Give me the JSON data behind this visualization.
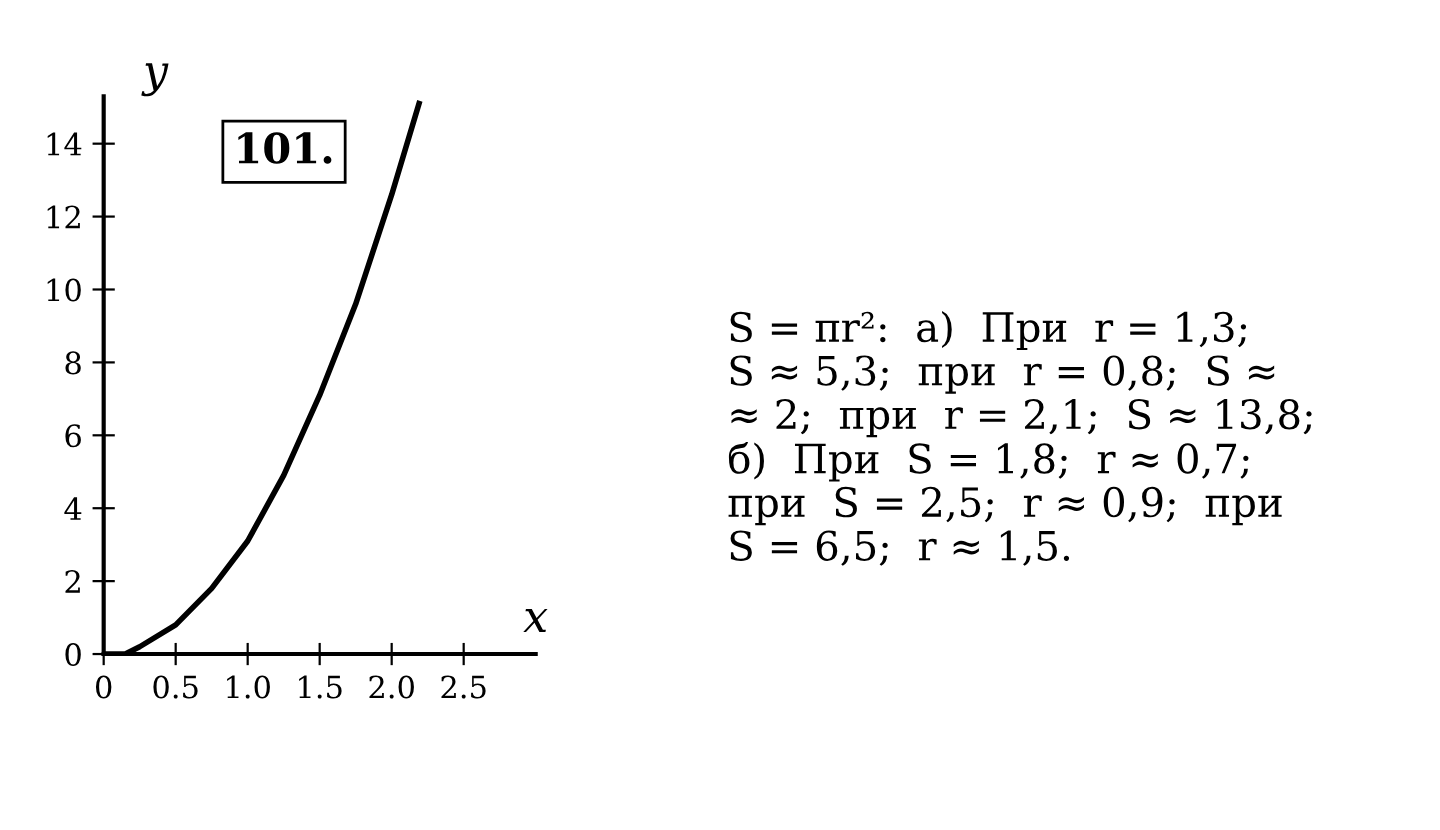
{
  "chart_data": {
    "type": "line",
    "xlabel": "x",
    "ylabel": "y",
    "x": [
      0,
      0.15,
      0.25,
      0.5,
      0.75,
      1.0,
      1.25,
      1.5,
      1.75,
      2.0,
      2.19
    ],
    "series": [
      {
        "color": "#000000",
        "values": [
          0,
          0,
          0.2,
          0.8,
          1.8,
          3.1,
          4.9,
          7.1,
          9.6,
          12.6,
          15.1
        ]
      }
    ],
    "xlim": [
      0,
      3.0
    ],
    "ylim": [
      0,
      15.3
    ],
    "xticks": [
      0,
      {
        "value": 0.5,
        "label": "0.5"
      },
      {
        "value": 1.0,
        "label": "1.0"
      },
      {
        "value": 1.5,
        "label": "1.5"
      },
      {
        "value": 2.0,
        "label": "2.0"
      },
      {
        "value": 2.5,
        "label": "2.5"
      }
    ],
    "yticks": [
      0,
      2,
      4,
      6,
      8,
      10,
      12,
      14
    ],
    "grid": false,
    "legend": false,
    "marker": "none",
    "line_style": "solid",
    "annotations": [
      "101.",
      "S = πr²:  а)  При  r = 1,3;\nS ≈ 5,3;  при  r = 0,8;  S ≈\n≈ 2;  при  r = 2,1;  S ≈ 13,8;\nб)  При  S = 1,8;  r ≈ 0,7;\nпри  S = 2,5;  r ≈ 0,9;  при\nS = 6,5;  r ≈ 1,5."
    ]
  }
}
